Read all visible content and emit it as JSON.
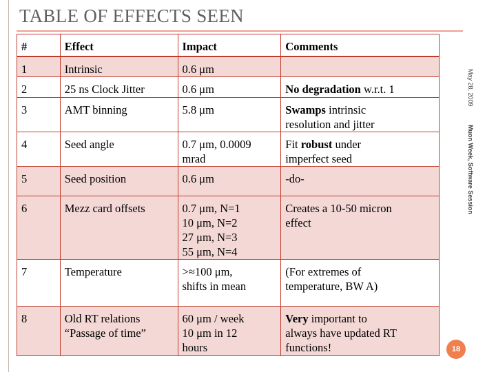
{
  "slide": {
    "title": "TABLE OF EFFECTS SEEN",
    "date": "May 28, 2009",
    "session": "Muon Week, Software Session",
    "page_number": "18"
  },
  "table": {
    "headers": [
      "#",
      "Effect",
      "Impact",
      "Comments"
    ],
    "rows": [
      {
        "num": "1",
        "effect": [
          "Intrinsic"
        ],
        "impact": [
          "0.6 μm"
        ],
        "comments": []
      },
      {
        "num": "2",
        "effect": [
          "25 ns Clock Jitter"
        ],
        "impact": [
          "0.6 μm"
        ],
        "comments": [
          {
            "bold": "No degradation",
            "rest": " w.r.t. 1"
          }
        ]
      },
      {
        "num": "3",
        "effect": [
          "AMT binning"
        ],
        "impact": [
          "5.8 μm"
        ],
        "comments": [
          {
            "bold": "Swamps",
            "rest": " intrinsic"
          },
          {
            "bold": "",
            "rest": "resolution and jitter"
          }
        ]
      },
      {
        "num": "4",
        "effect": [
          "Seed angle"
        ],
        "impact": [
          "0.7 μm, 0.0009",
          "mrad"
        ],
        "comments": [
          {
            "bold": "",
            "rest": "Fit "
          },
          {
            "bold": "",
            "rest": "imperfect seed"
          }
        ],
        "comment_first": {
          "pre": "Fit ",
          "bold": "robust",
          "post": " under"
        }
      },
      {
        "num": "5",
        "effect": [
          "Seed position"
        ],
        "impact": [
          "0.6 μm"
        ],
        "comments": [
          {
            "bold": "",
            "rest": " -do-"
          }
        ]
      },
      {
        "num": "6",
        "effect": [
          "Mezz card offsets"
        ],
        "impact": [
          "0.7 μm, N=1",
          "10 μm, N=2",
          "27 μm, N=3",
          "55 μm, N=4"
        ],
        "comments": [
          {
            "bold": "",
            "rest": "Creates a 10-50 micron"
          },
          {
            "bold": "",
            "rest": "effect"
          }
        ]
      },
      {
        "num": "7",
        "effect": [
          "Temperature"
        ],
        "impact": [
          ">≈100 μm,",
          "shifts in mean"
        ],
        "comments": [
          {
            "bold": "",
            "rest": "(For extremes of"
          },
          {
            "bold": "",
            "rest": "temperature, BW A)"
          }
        ]
      },
      {
        "num": "8",
        "effect": [
          "Old RT relations",
          "“Passage of time”"
        ],
        "impact": [
          "60 μm / week",
          "10 μm in 12",
          "hours"
        ],
        "comments": [
          {
            "bold": "Very",
            "rest": " important to"
          },
          {
            "bold": "",
            "rest": "always have updated RT"
          },
          {
            "bold": "",
            "rest": "functions!"
          }
        ]
      }
    ]
  }
}
